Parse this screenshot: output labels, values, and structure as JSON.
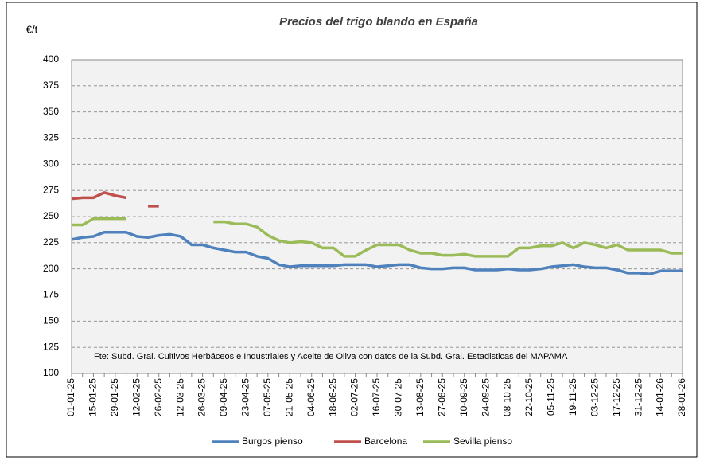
{
  "chart_data": {
    "type": "line",
    "title": "Precios del trigo blando en España",
    "y_label": "€/t",
    "annotation": "Fte: Subd. Gral. Cultivos Herbáceos e Industriales y Aceite de Oliva  con datos de la Subd. Gral. Estadisticas del MAPAMA",
    "categories": [
      "01-01-25",
      null,
      "15-01-25",
      null,
      "29-01-25",
      null,
      "12-02-25",
      null,
      "26-02-25",
      null,
      "12-03-25",
      null,
      "26-03-25",
      null,
      "09-04-25",
      null,
      "23-04-25",
      null,
      "07-05-25",
      null,
      "21-05-25",
      null,
      "04-06-25",
      null,
      "18-06-25",
      null,
      "02-07-25",
      null,
      "16-07-25",
      null,
      "30-07-25",
      null,
      "13-08-25",
      null,
      "27-08-25",
      null,
      "10-09-25",
      null,
      "24-09-25",
      null,
      "08-10-25",
      null,
      "22-10-25",
      null,
      "05-11-25",
      null,
      "19-11-25",
      null,
      "03-12-25",
      null,
      "17-12-25",
      null,
      "31-12-25",
      null,
      "14-01-26",
      null,
      "28-01-26"
    ],
    "series": [
      {
        "name": "Burgos pienso",
        "color": "#4f81bd",
        "values": [
          228,
          230,
          231,
          235,
          235,
          235,
          231,
          230,
          232,
          233,
          231,
          223,
          223,
          220,
          218,
          216,
          216,
          212,
          210,
          204,
          202,
          203,
          203,
          203,
          203,
          204,
          204,
          204,
          202,
          203,
          204,
          204,
          201,
          200,
          200,
          201,
          201,
          199,
          199,
          199,
          200,
          199,
          199,
          200,
          202,
          203,
          204,
          202,
          201,
          201,
          199,
          196,
          196,
          195,
          198,
          198,
          198
        ]
      },
      {
        "name": "Barcelona",
        "color": "#c0504d",
        "values": [
          267,
          268,
          268,
          273,
          270,
          268,
          null,
          260,
          260,
          null,
          null,
          null,
          null,
          null,
          null,
          null,
          null,
          null,
          null,
          null,
          null,
          null,
          null,
          null,
          null,
          null,
          null,
          null,
          null,
          null,
          null,
          null,
          null,
          null,
          null,
          null,
          null,
          null,
          null,
          null,
          null,
          null,
          null,
          null,
          null,
          null,
          null,
          null,
          null,
          null,
          null,
          null,
          null,
          null,
          null,
          null,
          null
        ]
      },
      {
        "name": "Sevilla pienso",
        "color": "#9bbb59",
        "values": [
          242,
          242,
          248,
          248,
          248,
          248,
          null,
          null,
          null,
          null,
          null,
          null,
          null,
          245,
          245,
          243,
          243,
          240,
          232,
          227,
          225,
          226,
          225,
          220,
          220,
          212,
          212,
          218,
          223,
          223,
          223,
          218,
          215,
          215,
          213,
          213,
          214,
          212,
          212,
          212,
          212,
          220,
          220,
          222,
          222,
          225,
          220,
          225,
          223,
          220,
          223,
          218,
          218,
          218,
          218,
          215,
          215
        ]
      }
    ],
    "ylim": [
      100,
      400
    ],
    "yticks": [
      100,
      125,
      150,
      175,
      200,
      225,
      250,
      275,
      300,
      325,
      350,
      375,
      400
    ],
    "grid": true
  }
}
